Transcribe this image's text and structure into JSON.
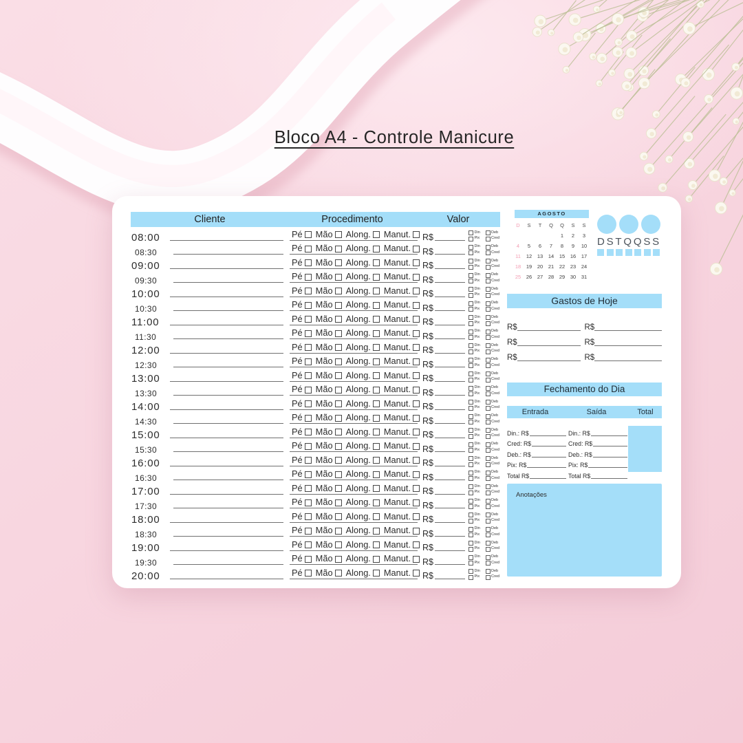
{
  "title": "Bloco A4 - Controle Manicure",
  "schedule": {
    "columns": {
      "cliente": "Cliente",
      "procedimento": "Procedimento",
      "valor": "Valor"
    },
    "times": [
      "08:00",
      "08:30",
      "09:00",
      "09:30",
      "10:00",
      "10:30",
      "11:00",
      "11:30",
      "12:00",
      "12:30",
      "13:00",
      "13:30",
      "14:00",
      "14:30",
      "15:00",
      "15:30",
      "16:00",
      "16:30",
      "17:00",
      "17:30",
      "18:00",
      "18:30",
      "19:00",
      "19:30",
      "20:00"
    ],
    "procedure_options": [
      "Pé",
      "Mão",
      "Along.",
      "Manut."
    ],
    "price_label": "R$",
    "payment_options": [
      "Din",
      "Deb",
      "Pix",
      "Cred"
    ]
  },
  "calendar": {
    "month": "AGOSTO",
    "day_headers": [
      "D",
      "S",
      "T",
      "Q",
      "Q",
      "S",
      "S"
    ],
    "weeks": [
      [
        "",
        "",
        "",
        "",
        "1",
        "2",
        "3"
      ],
      [
        "4",
        "5",
        "6",
        "7",
        "8",
        "9",
        "10"
      ],
      [
        "11",
        "12",
        "13",
        "14",
        "15",
        "16",
        "17"
      ],
      [
        "18",
        "19",
        "20",
        "21",
        "22",
        "23",
        "24"
      ],
      [
        "25",
        "26",
        "27",
        "28",
        "29",
        "30",
        "31"
      ]
    ]
  },
  "brand": {
    "letters": "DSTQQSS",
    "circle_count": 3,
    "square_count": 7
  },
  "gastos": {
    "title": "Gastos de Hoje",
    "price_label": "R$",
    "row_count": 3
  },
  "fechamento": {
    "title": "Fechamento do Dia",
    "columns": [
      "Entrada",
      "Saída",
      "Total"
    ],
    "field_labels": [
      "Din.: R$",
      "Cred: R$",
      "Deb.: R$",
      "Pix: R$",
      "Total R$"
    ]
  },
  "notes": {
    "title": "Anotações"
  },
  "colors": {
    "accent_blue": "#a4def9",
    "background_pink": "#f8d6e0",
    "sunday_pink": "#f29cb2",
    "ink": "#2c2c2c",
    "line": "#6f6f6f"
  }
}
